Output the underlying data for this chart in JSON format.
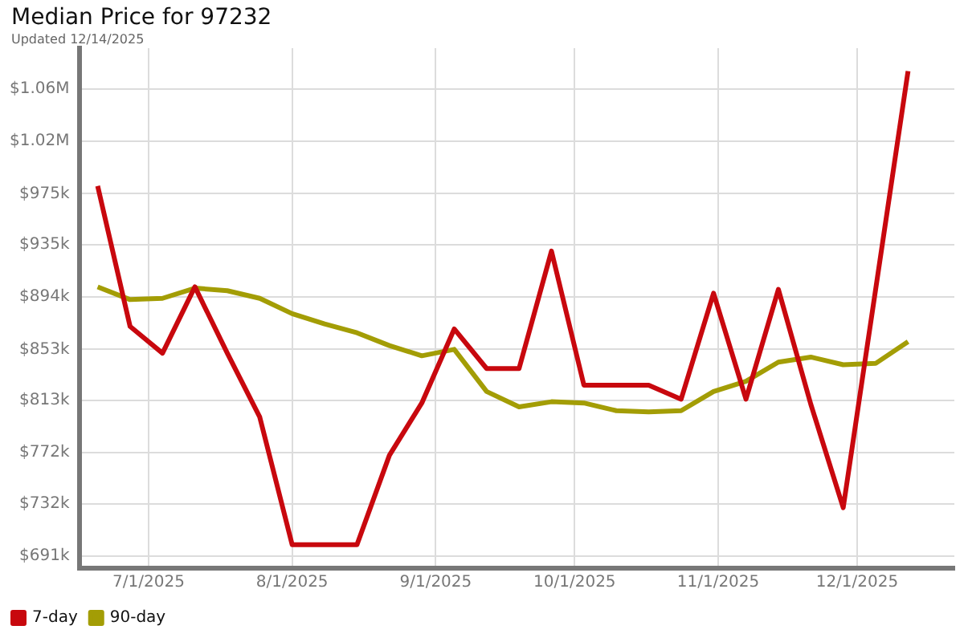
{
  "chart_data": {
    "type": "line",
    "title": "Median Price for 97232",
    "subtitle": "Updated 12/14/2025",
    "x": [
      "2025-06-20",
      "2025-06-27",
      "2025-07-04",
      "2025-07-11",
      "2025-07-18",
      "2025-07-25",
      "2025-08-01",
      "2025-08-08",
      "2025-08-15",
      "2025-08-22",
      "2025-08-29",
      "2025-09-05",
      "2025-09-12",
      "2025-09-19",
      "2025-09-26",
      "2025-10-03",
      "2025-10-10",
      "2025-10-17",
      "2025-10-24",
      "2025-10-31",
      "2025-11-07",
      "2025-11-14",
      "2025-11-21",
      "2025-11-28",
      "2025-12-05",
      "2025-12-12"
    ],
    "series": [
      {
        "name": "7-day",
        "color": "#c8080e",
        "values": [
          981000,
          871000,
          850000,
          902000,
          850000,
          800000,
          700000,
          700000,
          700000,
          770000,
          811000,
          869000,
          838000,
          838000,
          930000,
          825000,
          825000,
          825000,
          814000,
          897000,
          814000,
          900000,
          810000,
          729000,
          900000,
          1071000
        ]
      },
      {
        "name": "90-day",
        "color": "#a39d05",
        "values": [
          902000,
          892000,
          893000,
          901000,
          899000,
          893000,
          881000,
          873000,
          866000,
          856000,
          848000,
          853000,
          820000,
          808000,
          812000,
          811000,
          805000,
          804000,
          805000,
          820000,
          828000,
          843000,
          847000,
          841000,
          842000,
          859000
        ]
      }
    ],
    "xlim": [
      "2025-06-16",
      "2025-12-22"
    ],
    "xticks": [
      {
        "value": "2025-07-01",
        "label": "7/1/2025"
      },
      {
        "value": "2025-08-01",
        "label": "8/1/2025"
      },
      {
        "value": "2025-09-01",
        "label": "9/1/2025"
      },
      {
        "value": "2025-10-01",
        "label": "10/1/2025"
      },
      {
        "value": "2025-11-01",
        "label": "11/1/2025"
      },
      {
        "value": "2025-12-01",
        "label": "12/1/2025"
      }
    ],
    "ylim": [
      681600,
      1089000
    ],
    "yticks": [
      {
        "value": 691000,
        "label": "$691k"
      },
      {
        "value": 731700,
        "label": "$732k"
      },
      {
        "value": 772300,
        "label": "$772k"
      },
      {
        "value": 813000,
        "label": "$813k"
      },
      {
        "value": 853000,
        "label": "$853k"
      },
      {
        "value": 894300,
        "label": "$894k"
      },
      {
        "value": 934900,
        "label": "$935k"
      },
      {
        "value": 975000,
        "label": "$975k"
      },
      {
        "value": 1016200,
        "label": "$1.02M"
      },
      {
        "value": 1056900,
        "label": "$1.06M"
      }
    ],
    "grid": true,
    "legend": "bottom left"
  }
}
